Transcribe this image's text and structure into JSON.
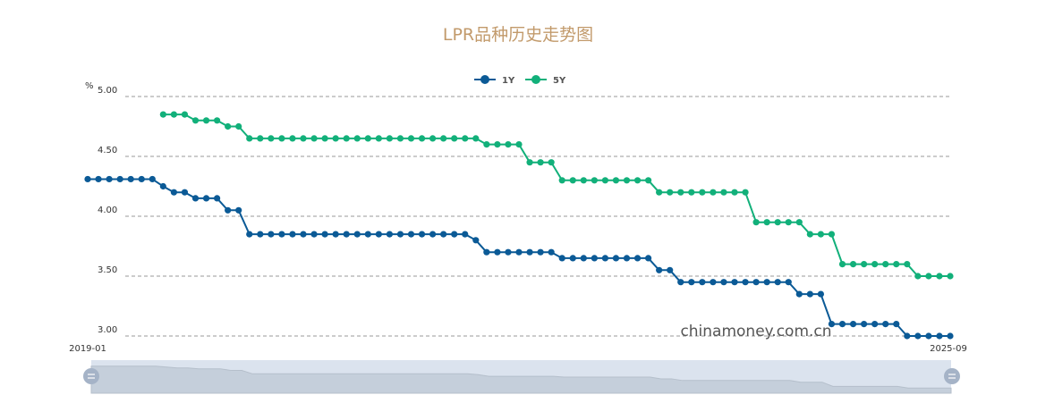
{
  "chart_data": {
    "type": "line",
    "title": "LPR品种历史走势图",
    "y_unit_label": "%",
    "ylim": [
      3.0,
      5.0
    ],
    "y_ticks": [
      "5.00",
      "4.50",
      "4.00",
      "3.50",
      "3.00"
    ],
    "x_start_label": "2019-01",
    "x_end_label": "2025-09",
    "grid": true,
    "legend_position": "top-center",
    "watermark": "chinamoney.com.cn",
    "series": [
      {
        "name": "1Y",
        "color": "#0b5a96",
        "values": [
          4.31,
          4.31,
          4.31,
          4.31,
          4.31,
          4.31,
          4.31,
          4.25,
          4.2,
          4.2,
          4.15,
          4.15,
          4.15,
          4.05,
          4.05,
          3.85,
          3.85,
          3.85,
          3.85,
          3.85,
          3.85,
          3.85,
          3.85,
          3.85,
          3.85,
          3.85,
          3.85,
          3.85,
          3.85,
          3.85,
          3.85,
          3.85,
          3.85,
          3.85,
          3.85,
          3.85,
          3.8,
          3.7,
          3.7,
          3.7,
          3.7,
          3.7,
          3.7,
          3.7,
          3.65,
          3.65,
          3.65,
          3.65,
          3.65,
          3.65,
          3.65,
          3.65,
          3.65,
          3.55,
          3.55,
          3.45,
          3.45,
          3.45,
          3.45,
          3.45,
          3.45,
          3.45,
          3.45,
          3.45,
          3.45,
          3.45,
          3.35,
          3.35,
          3.35,
          3.1,
          3.1,
          3.1,
          3.1,
          3.1,
          3.1,
          3.1,
          3.0,
          3.0,
          3.0,
          3.0,
          3.0
        ]
      },
      {
        "name": "5Y",
        "color": "#12b07a",
        "values": [
          null,
          null,
          null,
          null,
          null,
          null,
          null,
          4.85,
          4.85,
          4.85,
          4.8,
          4.8,
          4.8,
          4.75,
          4.75,
          4.65,
          4.65,
          4.65,
          4.65,
          4.65,
          4.65,
          4.65,
          4.65,
          4.65,
          4.65,
          4.65,
          4.65,
          4.65,
          4.65,
          4.65,
          4.65,
          4.65,
          4.65,
          4.65,
          4.65,
          4.65,
          4.65,
          4.6,
          4.6,
          4.6,
          4.6,
          4.45,
          4.45,
          4.45,
          4.3,
          4.3,
          4.3,
          4.3,
          4.3,
          4.3,
          4.3,
          4.3,
          4.3,
          4.2,
          4.2,
          4.2,
          4.2,
          4.2,
          4.2,
          4.2,
          4.2,
          4.2,
          3.95,
          3.95,
          3.95,
          3.95,
          3.95,
          3.85,
          3.85,
          3.85,
          3.6,
          3.6,
          3.6,
          3.6,
          3.6,
          3.6,
          3.6,
          3.5,
          3.5,
          3.5,
          3.5
        ]
      }
    ]
  }
}
